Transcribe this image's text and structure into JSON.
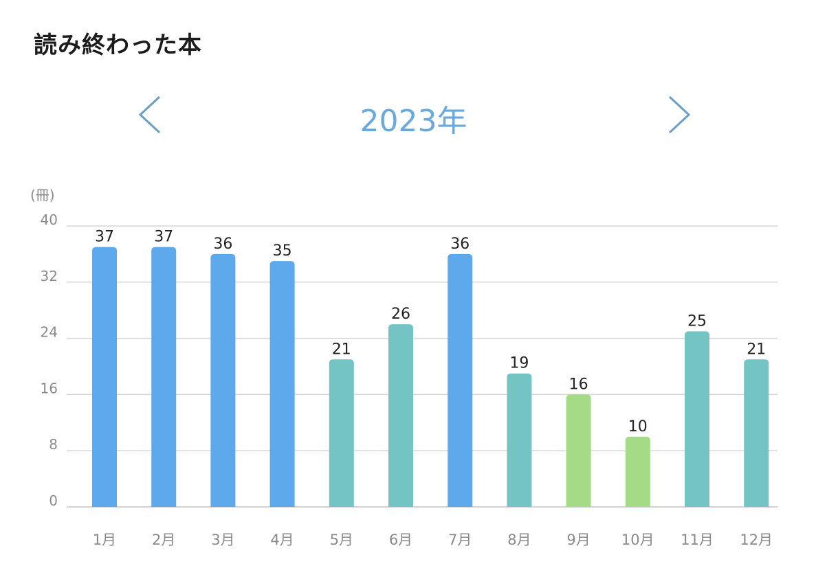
{
  "header": {
    "title": "読み終わった本"
  },
  "year_nav": {
    "year_label": "2023年",
    "prev_icon": "chevron-left-icon",
    "next_icon": "chevron-right-icon",
    "arrow_color": "#6a9fc8"
  },
  "chart_data": {
    "type": "bar",
    "unit_label": "(冊)",
    "categories": [
      "1月",
      "2月",
      "3月",
      "4月",
      "5月",
      "6月",
      "7月",
      "8月",
      "9月",
      "10月",
      "11月",
      "12月"
    ],
    "values": [
      37,
      37,
      36,
      35,
      21,
      26,
      36,
      19,
      16,
      10,
      25,
      21
    ],
    "bar_colors": [
      "#5ea8ec",
      "#5ea8ec",
      "#5ea8ec",
      "#5ea8ec",
      "#74c4c4",
      "#74c4c4",
      "#5ea8ec",
      "#74c4c4",
      "#a5da86",
      "#a5da86",
      "#74c4c4",
      "#74c4c4"
    ],
    "ylim": [
      0,
      40
    ],
    "yticks": [
      0,
      8,
      16,
      24,
      32,
      40
    ],
    "grid": true,
    "data_labels": true
  }
}
